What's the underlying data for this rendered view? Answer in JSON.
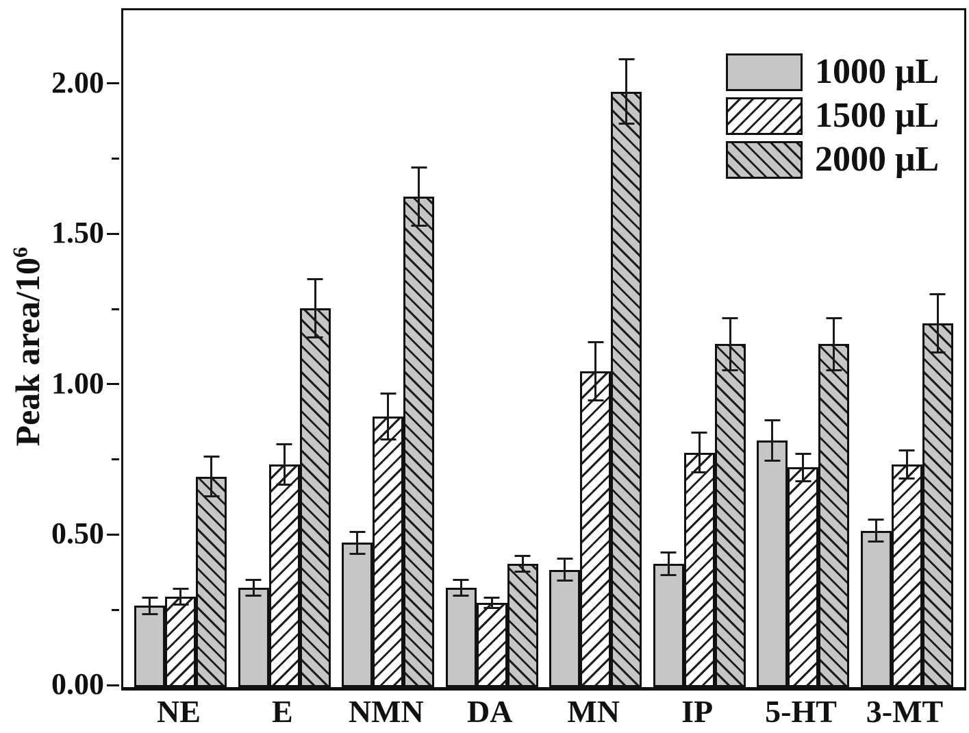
{
  "chart_data": {
    "type": "bar",
    "title": "",
    "ylabel_base": "Peak area/10",
    "ylabel_sup": "6",
    "xlabel": "",
    "categories": [
      "NE",
      "E",
      "NMN",
      "DA",
      "MN",
      "IP",
      "5-HT",
      "3-MT"
    ],
    "series": [
      {
        "name": "1000 μL",
        "pattern": "solid",
        "fill": "#c6c6c6",
        "values": [
          0.27,
          0.33,
          0.48,
          0.33,
          0.39,
          0.41,
          0.82,
          0.52
        ],
        "errors": [
          0.03,
          0.03,
          0.04,
          0.03,
          0.04,
          0.04,
          0.07,
          0.04
        ]
      },
      {
        "name": "1500 μL",
        "pattern": "hatch-forward",
        "fill": "#ffffff",
        "values": [
          0.3,
          0.74,
          0.9,
          0.28,
          1.05,
          0.78,
          0.73,
          0.74
        ],
        "errors": [
          0.03,
          0.07,
          0.08,
          0.02,
          0.1,
          0.07,
          0.05,
          0.05
        ]
      },
      {
        "name": "2000 μL",
        "pattern": "hatch-backward",
        "fill": "#c6c6c6",
        "values": [
          0.7,
          1.26,
          1.63,
          0.41,
          1.98,
          1.14,
          1.14,
          1.21
        ],
        "errors": [
          0.07,
          0.1,
          0.1,
          0.03,
          0.11,
          0.09,
          0.09,
          0.1
        ]
      }
    ],
    "ylim": [
      0,
      2.25
    ],
    "yticks_major": [
      0,
      0.5,
      1.0,
      1.5,
      2.0
    ],
    "ytick_labels": [
      "0.00",
      "0.50",
      "1.00",
      "1.50",
      "2.00"
    ],
    "yticks_minor": [
      0.25,
      0.75,
      1.25,
      1.75
    ],
    "legend_position": "top-right",
    "grid": false,
    "error_bars": true
  },
  "colors": {
    "axis": "#111111",
    "bar_gray": "#c6c6c6",
    "hatch_line": "#1c1c1c",
    "background": "#ffffff"
  }
}
